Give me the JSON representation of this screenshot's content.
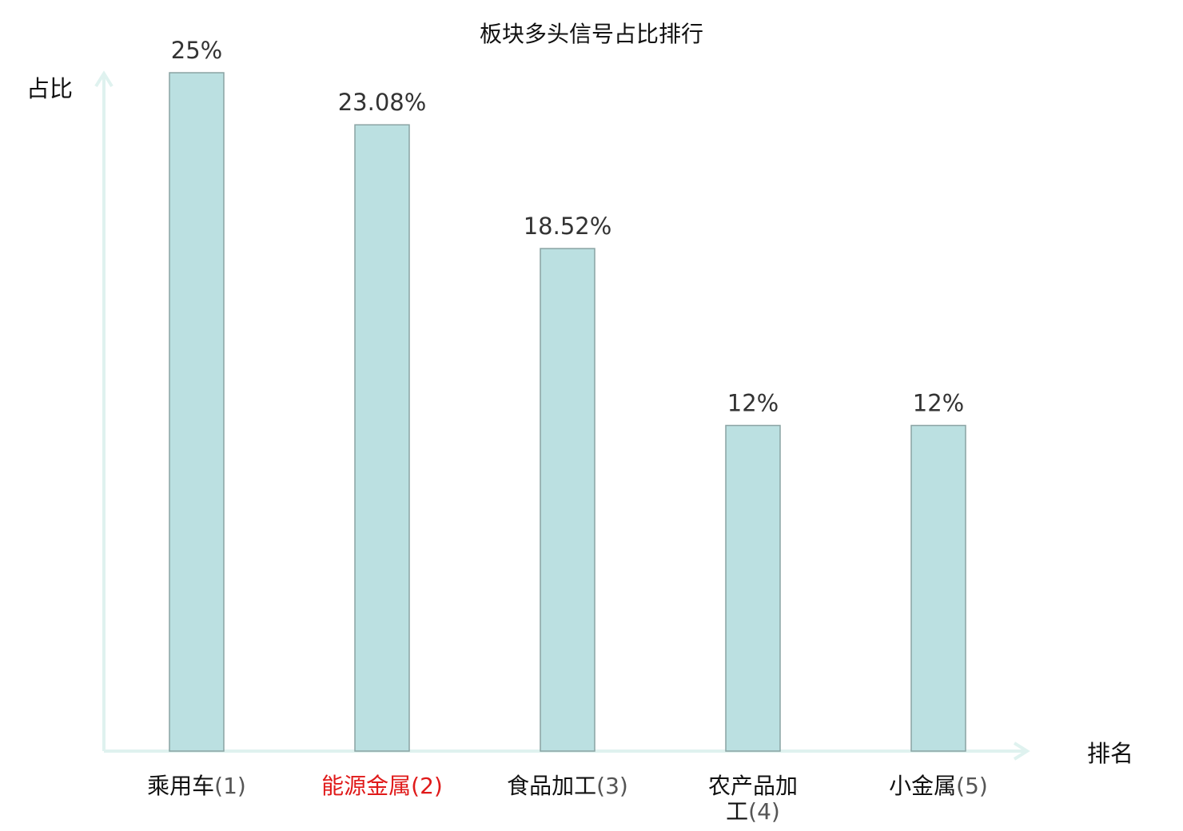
{
  "chart_data": {
    "type": "bar",
    "title": "板块多头信号占比排行",
    "ylabel": "占比",
    "xlabel": "排名",
    "categories": [
      "乘用车",
      "能源金属",
      "食品加工",
      "农产品加工",
      "小金属"
    ],
    "category_ranks": [
      "(1)",
      "(2)",
      "(3)",
      "(4)",
      "(5)"
    ],
    "values": [
      25,
      23.08,
      18.52,
      12,
      12
    ],
    "value_labels": [
      "25%",
      "23.08%",
      "18.52%",
      "12%",
      "12%"
    ],
    "ylim": [
      0,
      25
    ],
    "grid": false,
    "highlight_index": 1,
    "colors": {
      "bar_fill": "#bbe0e1",
      "bar_stroke": "#8aa3a3",
      "axis": "#dff2ef",
      "highlight_text": "#e01a1a",
      "text": "#111111"
    }
  }
}
